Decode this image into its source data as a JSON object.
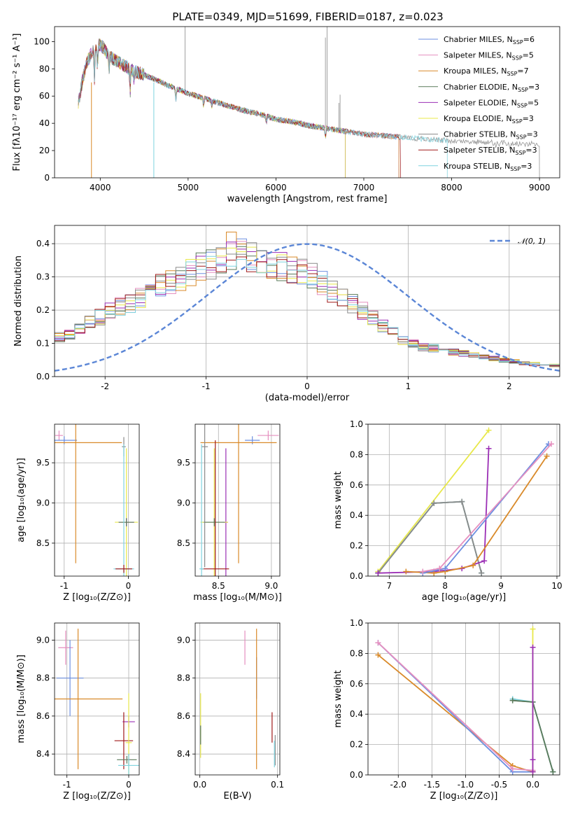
{
  "colors": {
    "Chabrier MILES": "#6d8fe0",
    "Salpeter MILES": "#e58fbf",
    "Kroupa MILES": "#d98a2a",
    "Chabrier ELODIE": "#5a7a5a",
    "Salpeter ELODIE": "#9b2fb5",
    "Kroupa ELODIE": "#e8e84a",
    "Chabrier STELIB": "#8a8a8a",
    "Salpeter STELIB": "#a01a1a",
    "Kroupa STELIB": "#7fd3df",
    "grid": "#b0b0b0",
    "gauss": "#5b86d6"
  },
  "chart_data": [
    {
      "type": "line",
      "title": "PLATE=0349, MJD=51699, FIBERID=0187, z=0.023",
      "xlabel": "wavelength [Angstrom, rest frame]",
      "ylabel": "Flux [fλ10⁻¹⁷ erg cm⁻² s⁻¹ A⁻¹]",
      "xlim": [
        3480,
        9230
      ],
      "ylim": [
        0,
        111
      ],
      "xticks": [
        4000,
        5000,
        6000,
        7000,
        8000,
        9000
      ],
      "yticks": [
        0,
        20,
        40,
        60,
        80,
        100
      ],
      "grid": false,
      "legend": "upper right",
      "continuum": [
        [
          3750,
          55
        ],
        [
          3800,
          72
        ],
        [
          3850,
          85
        ],
        [
          3900,
          92
        ],
        [
          3950,
          96
        ],
        [
          4000,
          98
        ],
        [
          4100,
          90
        ],
        [
          4200,
          85
        ],
        [
          4400,
          78
        ],
        [
          4600,
          73
        ],
        [
          4800,
          67
        ],
        [
          5000,
          62
        ],
        [
          5200,
          58
        ],
        [
          5400,
          54
        ],
        [
          5600,
          50
        ],
        [
          5800,
          47
        ],
        [
          6000,
          43
        ],
        [
          6200,
          41
        ],
        [
          6400,
          38
        ],
        [
          6600,
          36
        ],
        [
          6800,
          34
        ],
        [
          7000,
          32
        ],
        [
          7200,
          31
        ],
        [
          7400,
          30
        ],
        [
          7600,
          29
        ],
        [
          7800,
          28
        ],
        [
          8000,
          27
        ],
        [
          8200,
          26.5
        ],
        [
          8400,
          26
        ],
        [
          8600,
          25.5
        ],
        [
          8800,
          25
        ],
        [
          9000,
          25
        ]
      ],
      "series": [
        {
          "name": "Chabrier MILES, N_SSP=6",
          "legend_label": "Chabrier MILES, N",
          "legend_sub": "SSP",
          "legend_n": "=6",
          "key": "Chabrier MILES",
          "end": 7400
        },
        {
          "name": "Salpeter MILES, N_SSP=5",
          "legend_label": "Salpeter MILES, N",
          "legend_sub": "SSP",
          "legend_n": "=5",
          "key": "Salpeter MILES",
          "end": 7400
        },
        {
          "name": "Kroupa MILES, N_SSP=7",
          "legend_label": "Kroupa MILES, N",
          "legend_sub": "SSP",
          "legend_n": "=7",
          "key": "Kroupa MILES",
          "end": 7400
        },
        {
          "name": "Chabrier ELODIE, N_SSP=3",
          "legend_label": "Chabrier ELODIE, N",
          "legend_sub": "SSP",
          "legend_n": "=3",
          "key": "Chabrier ELODIE",
          "end": 6790
        },
        {
          "name": "Salpeter ELODIE, N_SSP=5",
          "legend_label": "Salpeter ELODIE, N",
          "legend_sub": "SSP",
          "legend_n": "=5",
          "key": "Salpeter ELODIE",
          "end": 6790
        },
        {
          "name": "Kroupa ELODIE, N_SSP=3",
          "legend_label": "Kroupa ELODIE, N",
          "legend_sub": "SSP",
          "legend_n": "=3",
          "key": "Kroupa ELODIE",
          "end": 6790
        },
        {
          "name": "Chabrier STELIB, N_SSP=3",
          "legend_label": "Chabrier STELIB, N",
          "legend_sub": "SSP",
          "legend_n": "=3",
          "key": "Chabrier STELIB",
          "end": 9000
        },
        {
          "name": "Salpeter STELIB, N_SSP=3",
          "legend_label": "Salpeter STELIB, N",
          "legend_sub": "SSP",
          "legend_n": "=3",
          "key": "Salpeter STELIB",
          "end": 7420
        },
        {
          "name": "Kroupa STELIB, N_SSP=3",
          "legend_label": "Kroupa STELIB, N",
          "legend_sub": "SSP",
          "legend_n": "=3",
          "key": "Kroupa STELIB",
          "end": 7950
        }
      ]
    },
    {
      "type": "line",
      "xlabel": "(data-model)/error",
      "ylabel": "Normed distribution",
      "xlim": [
        -2.5,
        2.5
      ],
      "ylim": [
        0,
        0.455
      ],
      "xticks": [
        -2,
        -1,
        0,
        1,
        2
      ],
      "yticks": [
        0.0,
        0.1,
        0.2,
        0.3,
        0.4
      ],
      "grid": true,
      "legend": "upper right",
      "legend_label": "𝒩(0, 1)",
      "bins": {
        "start": -2.5,
        "width": 0.1,
        "count": 50
      },
      "envelope": [
        0.12,
        0.13,
        0.14,
        0.16,
        0.18,
        0.2,
        0.21,
        0.22,
        0.24,
        0.26,
        0.27,
        0.28,
        0.3,
        0.31,
        0.33,
        0.34,
        0.35,
        0.36,
        0.37,
        0.36,
        0.35,
        0.34,
        0.33,
        0.32,
        0.31,
        0.3,
        0.28,
        0.26,
        0.24,
        0.22,
        0.2,
        0.18,
        0.15,
        0.13,
        0.11,
        0.1,
        0.09,
        0.085,
        0.08,
        0.075,
        0.07,
        0.065,
        0.06,
        0.055,
        0.05,
        0.045,
        0.04,
        0.038,
        0.035,
        0.033
      ],
      "peaks": {
        "Kroupa MILES": 0.435,
        "Chabrier MILES": 0.4,
        "Salpeter MILES": 0.4
      },
      "series_keys": [
        "Chabrier MILES",
        "Salpeter MILES",
        "Kroupa MILES",
        "Chabrier ELODIE",
        "Salpeter ELODIE",
        "Kroupa ELODIE",
        "Chabrier STELIB",
        "Salpeter STELIB",
        "Kroupa STELIB"
      ]
    },
    {
      "type": "scatter",
      "xlabel": "Z [log₁₀(Z/Z⊙)]",
      "ylabel": "age  [log₁₀(age/yr)]",
      "xlim": [
        -1.15,
        0.17
      ],
      "ylim": [
        8.09,
        9.98
      ],
      "xticks": [
        -1,
        0
      ],
      "yticks": [
        8.5,
        9.0,
        9.5
      ],
      "points": [
        {
          "key": "Salpeter MILES",
          "x": -1.08,
          "y": 9.84,
          "xerr": 0.06,
          "yerr": 0.06
        },
        {
          "key": "Chabrier MILES",
          "x": -1.0,
          "y": 9.78,
          "xerr": 0.2,
          "yerr": 0.05
        },
        {
          "key": "Kroupa MILES",
          "x": -0.82,
          "y": 9.75,
          "xerr": 0.72,
          "yerr": 1.5
        },
        {
          "key": "Chabrier STELIB",
          "x": -0.07,
          "y": 9.7,
          "xerr": 0.03,
          "yerr": 0.12
        },
        {
          "key": "Kroupa ELODIE",
          "x": -0.03,
          "y": 8.76,
          "xerr": 0.18,
          "yerr": 0.92
        },
        {
          "key": "Salpeter ELODIE",
          "x": -0.03,
          "y": 8.76,
          "xerr": 0.12,
          "yerr": 0.05
        },
        {
          "key": "Chabrier ELODIE",
          "x": -0.03,
          "y": 8.76,
          "xerr": 0.12,
          "yerr": 0.05
        },
        {
          "key": "Kroupa STELIB",
          "x": -0.07,
          "y": 8.18,
          "xerr": 0.16,
          "yerr": 1.55
        },
        {
          "key": "Salpeter STELIB",
          "x": -0.07,
          "y": 8.18,
          "xerr": 0.13,
          "yerr": 0.05
        }
      ]
    },
    {
      "type": "scatter",
      "xlabel": "mass [log₁₀(M/M⊙)]",
      "ylabel": "",
      "xlim": [
        8.28,
        9.08
      ],
      "ylim": [
        8.09,
        9.98
      ],
      "xticks": [
        8.5,
        9.0
      ],
      "yticks": [
        8.5,
        9.0,
        9.5
      ],
      "points": [
        {
          "key": "Salpeter MILES",
          "x": 8.97,
          "y": 9.84,
          "xerr": 0.1,
          "yerr": 0.06
        },
        {
          "key": "Chabrier MILES",
          "x": 8.82,
          "y": 9.78,
          "xerr": 0.07,
          "yerr": 0.05
        },
        {
          "key": "Kroupa MILES",
          "x": 8.69,
          "y": 9.75,
          "xerr": 0.36,
          "yerr": 1.5
        },
        {
          "key": "Salpeter ELODIE",
          "x": 8.57,
          "y": 8.76,
          "xerr": 0.02,
          "yerr": 0.92
        },
        {
          "key": "Kroupa ELODIE",
          "x": 8.46,
          "y": 8.76,
          "xerr": 0.13,
          "yerr": 0.92
        },
        {
          "key": "Chabrier ELODIE",
          "x": 8.46,
          "y": 8.76,
          "xerr": 0.1,
          "yerr": 0.05
        },
        {
          "key": "Chabrier STELIB",
          "x": 8.37,
          "y": 9.7,
          "xerr": 0.03,
          "yerr": 1.5
        },
        {
          "key": "Salpeter STELIB",
          "x": 8.47,
          "y": 8.18,
          "xerr": 0.13,
          "yerr": 1.6
        },
        {
          "key": "Kroupa STELIB",
          "x": 8.34,
          "y": 8.18,
          "xerr": 0.02,
          "yerr": 1.55
        }
      ]
    },
    {
      "type": "line",
      "xlabel": "age  [log₁₀(age/yr)]",
      "ylabel": "mass weight",
      "xlim": [
        6.62,
        10.05
      ],
      "ylim": [
        0,
        1.0
      ],
      "xticks": [
        7,
        8,
        9,
        10
      ],
      "yticks": [
        0.0,
        0.2,
        0.4,
        0.6,
        0.8,
        1.0
      ],
      "series": [
        {
          "key": "Kroupa ELODIE",
          "x": [
            6.8,
            8.78
          ],
          "y": [
            0.03,
            0.96
          ]
        },
        {
          "key": "Chabrier ELODIE",
          "x": [
            6.8,
            7.8,
            8.3,
            8.65
          ],
          "y": [
            0.02,
            0.48,
            0.49,
            0.02
          ]
        },
        {
          "key": "Kroupa STELIB",
          "x": [
            6.8,
            7.8,
            8.3,
            8.65
          ],
          "y": [
            0.02,
            0.48,
            0.49,
            0.02
          ]
        },
        {
          "key": "Chabrier STELIB",
          "x": [
            6.8,
            7.8,
            8.3,
            8.65
          ],
          "y": [
            0.02,
            0.48,
            0.49,
            0.02
          ]
        },
        {
          "key": "Salpeter ELODIE",
          "x": [
            6.8,
            7.8,
            8.3,
            8.7,
            8.78
          ],
          "y": [
            0.02,
            0.03,
            0.05,
            0.1,
            0.84
          ]
        },
        {
          "key": "Kroupa MILES",
          "x": [
            7.3,
            7.8,
            8.0,
            8.5,
            9.82
          ],
          "y": [
            0.03,
            0.02,
            0.03,
            0.07,
            0.79
          ]
        },
        {
          "key": "Chabrier MILES",
          "x": [
            7.6,
            8.0,
            9.85
          ],
          "y": [
            0.02,
            0.05,
            0.87
          ]
        },
        {
          "key": "Salpeter MILES",
          "x": [
            7.6,
            7.9,
            9.9
          ],
          "y": [
            0.03,
            0.05,
            0.87
          ]
        }
      ]
    },
    {
      "type": "scatter",
      "xlabel": "Z [log₁₀(Z/Z⊙)]",
      "ylabel": "mass [log₁₀(M/M⊙)]",
      "xlim": [
        -1.2,
        0.17
      ],
      "ylim": [
        8.29,
        9.09
      ],
      "xticks": [
        -1,
        0
      ],
      "yticks": [
        8.4,
        8.6,
        8.8,
        9.0
      ],
      "points": [
        {
          "key": "Salpeter MILES",
          "x": -1.02,
          "y": 8.96,
          "xerr": 0.12,
          "yerr": 0.09
        },
        {
          "key": "Chabrier MILES",
          "x": -0.95,
          "y": 8.8,
          "xerr": 0.22,
          "yerr": 0.2
        },
        {
          "key": "Kroupa MILES",
          "x": -0.82,
          "y": 8.69,
          "xerr": 0.72,
          "yerr": 0.37
        },
        {
          "key": "Salpeter ELODIE",
          "x": 0.0,
          "y": 8.57,
          "xerr": 0.1,
          "yerr": 0.03
        },
        {
          "key": "Salpeter STELIB",
          "x": -0.08,
          "y": 8.47,
          "xerr": 0.15,
          "yerr": 0.15
        },
        {
          "key": "Kroupa ELODIE",
          "x": 0.0,
          "y": 8.46,
          "xerr": 0.05,
          "yerr": 0.26
        },
        {
          "key": "Chabrier ELODIE",
          "x": -0.03,
          "y": 8.37,
          "xerr": 0.16,
          "yerr": 0.02
        },
        {
          "key": "Chabrier STELIB",
          "x": 0.0,
          "y": 8.37,
          "xerr": 0.03,
          "yerr": 0.03
        },
        {
          "key": "Kroupa STELIB",
          "x": 0.0,
          "y": 8.34,
          "xerr": 0.17,
          "yerr": 0.06
        }
      ]
    },
    {
      "type": "scatter",
      "xlabel": "E(B-V)",
      "ylabel": "",
      "xlim": [
        -0.006,
        0.103
      ],
      "ylim": [
        8.29,
        9.09
      ],
      "xticks": [
        0.0,
        0.1
      ],
      "yticks": [
        8.4,
        8.6,
        8.8,
        9.0
      ],
      "points": [
        {
          "key": "Salpeter MILES",
          "x": 0.058,
          "y": 8.96,
          "xerr": 0,
          "yerr": 0.09
        },
        {
          "key": "Chabrier MILES",
          "x": 0.073,
          "y": 8.8,
          "xerr": 0,
          "yerr": 0.11
        },
        {
          "key": "Kroupa MILES",
          "x": 0.073,
          "y": 8.69,
          "xerr": 0,
          "yerr": 0.37
        },
        {
          "key": "Salpeter STELIB",
          "x": 0.093,
          "y": 8.54,
          "xerr": 0,
          "yerr": 0.08
        },
        {
          "key": "Kroupa ELODIE",
          "x": 0.001,
          "y": 8.55,
          "xerr": 0,
          "yerr": 0.17
        },
        {
          "key": "Chabrier ELODIE",
          "x": 0.001,
          "y": 8.5,
          "xerr": 0,
          "yerr": 0.05
        },
        {
          "key": "Chabrier STELIB",
          "x": 0.097,
          "y": 8.42,
          "xerr": 0,
          "yerr": 0.08
        },
        {
          "key": "Kroupa STELIB",
          "x": 0.096,
          "y": 8.4,
          "xerr": 0,
          "yerr": 0.07
        }
      ]
    },
    {
      "type": "line",
      "xlabel": "Z [log₁₀(Z/Z⊙)]",
      "ylabel": "mass weight",
      "xlim": [
        -2.45,
        0.4
      ],
      "ylim": [
        0,
        1.0
      ],
      "xticks": [
        -2.0,
        -1.5,
        -1.0,
        -0.5,
        0.0
      ],
      "yticks": [
        0.0,
        0.2,
        0.4,
        0.6,
        0.8,
        1.0
      ],
      "series": [
        {
          "key": "Kroupa MILES",
          "x": [
            -2.3,
            -0.3,
            0.0
          ],
          "y": [
            0.79,
            0.06,
            0.02
          ]
        },
        {
          "key": "Chabrier MILES",
          "x": [
            -2.3,
            -0.3,
            0.0
          ],
          "y": [
            0.87,
            0.02,
            0.02
          ]
        },
        {
          "key": "Salpeter MILES",
          "x": [
            -2.3,
            -0.3,
            0.0
          ],
          "y": [
            0.87,
            0.04,
            0.03
          ]
        },
        {
          "key": "Chabrier STELIB",
          "x": [
            -0.3,
            0.0,
            0.3
          ],
          "y": [
            0.49,
            0.48,
            0.02
          ]
        },
        {
          "key": "Kroupa STELIB",
          "x": [
            -0.3,
            0.0,
            0.3
          ],
          "y": [
            0.5,
            0.48,
            0.02
          ]
        },
        {
          "key": "Chabrier ELODIE",
          "x": [
            -0.3,
            0.0,
            0.3
          ],
          "y": [
            0.49,
            0.48,
            0.02
          ]
        },
        {
          "key": "Kroupa ELODIE",
          "x": [
            0.0,
            0.0
          ],
          "y": [
            0.02,
            0.96
          ]
        },
        {
          "key": "Salpeter ELODIE",
          "x": [
            0.0,
            0.0,
            0.0
          ],
          "y": [
            0.02,
            0.1,
            0.84
          ]
        }
      ]
    }
  ]
}
